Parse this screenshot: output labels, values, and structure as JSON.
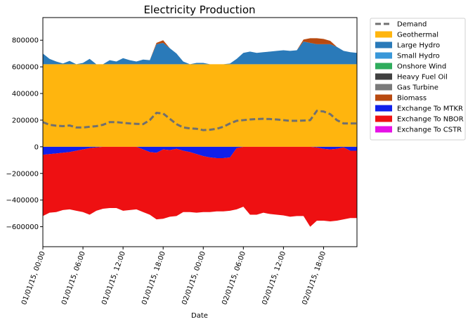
{
  "chart_data": {
    "type": "area",
    "title": "Electricity Production",
    "xlabel": "Date",
    "ylabel": "",
    "ylim": [
      -750000,
      970000
    ],
    "yticks": [
      -600000,
      -400000,
      -200000,
      0,
      200000,
      400000,
      600000,
      800000
    ],
    "ytick_labels": [
      "−600000",
      "−400000",
      "−200000",
      "0",
      "200000",
      "400000",
      "600000",
      "800000"
    ],
    "x_start": "01/01/15, 00:00",
    "x_step_hours": 1,
    "xticks_hours": [
      0,
      6,
      12,
      18,
      24,
      30,
      36,
      42
    ],
    "xtick_labels": [
      "01/01/15, 00:00",
      "01/01/15, 06:00",
      "01/01/15, 12:00",
      "01/01/15, 18:00",
      "02/01/15, 00:00",
      "02/01/15, 06:00",
      "02/01/15, 12:00",
      "02/01/15, 18:00"
    ],
    "xlim_hours": [
      0,
      47
    ],
    "grid": false,
    "legend_position": "outside-right",
    "demand": {
      "name": "Demand",
      "color": "#707070",
      "style": "dashed",
      "values": [
        185000,
        165000,
        158000,
        155000,
        160000,
        145000,
        145000,
        150000,
        155000,
        165000,
        185000,
        185000,
        180000,
        175000,
        172000,
        170000,
        200000,
        255000,
        250000,
        210000,
        170000,
        145000,
        138000,
        135000,
        125000,
        128000,
        135000,
        150000,
        175000,
        195000,
        200000,
        205000,
        208000,
        210000,
        208000,
        205000,
        200000,
        195000,
        195000,
        197000,
        200000,
        270000,
        265000,
        245000,
        200000,
        175000,
        175000,
        175000
      ]
    },
    "positive_series": [
      {
        "name": "Geothermal",
        "color": "#ffb50e",
        "values": [
          620000,
          620000,
          620000,
          620000,
          620000,
          620000,
          620000,
          620000,
          620000,
          620000,
          620000,
          620000,
          620000,
          620000,
          620000,
          620000,
          620000,
          620000,
          620000,
          620000,
          620000,
          620000,
          620000,
          620000,
          620000,
          620000,
          620000,
          620000,
          620000,
          620000,
          620000,
          620000,
          620000,
          620000,
          620000,
          620000,
          620000,
          620000,
          620000,
          620000,
          620000,
          620000,
          620000,
          620000,
          620000,
          620000,
          620000,
          620000
        ]
      },
      {
        "name": "Large Hydro",
        "color": "#2a7ab9",
        "values": [
          80000,
          40000,
          20000,
          5000,
          25000,
          0,
          10000,
          40000,
          0,
          0,
          30000,
          20000,
          45000,
          30000,
          20000,
          35000,
          30000,
          150000,
          160000,
          120000,
          80000,
          20000,
          0,
          10000,
          10000,
          0,
          0,
          0,
          5000,
          40000,
          85000,
          95000,
          85000,
          90000,
          95000,
          100000,
          105000,
          100000,
          105000,
          170000,
          160000,
          150000,
          150000,
          150000,
          130000,
          100000,
          90000,
          85000
        ]
      },
      {
        "name": "Small Hydro",
        "color": "#3a98d9",
        "values": [
          0,
          0,
          0,
          0,
          0,
          0,
          0,
          0,
          0,
          0,
          0,
          0,
          0,
          0,
          0,
          0,
          0,
          0,
          0,
          0,
          0,
          0,
          0,
          0,
          0,
          0,
          0,
          0,
          0,
          0,
          0,
          0,
          0,
          0,
          0,
          0,
          0,
          0,
          0,
          0,
          0,
          0,
          0,
          0,
          0,
          0,
          0,
          0
        ]
      },
      {
        "name": "Onshore Wind",
        "color": "#2fac5c",
        "values": [
          0,
          0,
          0,
          0,
          0,
          0,
          0,
          0,
          0,
          0,
          0,
          0,
          0,
          0,
          0,
          0,
          0,
          0,
          0,
          0,
          0,
          0,
          0,
          0,
          0,
          0,
          0,
          0,
          0,
          0,
          0,
          0,
          0,
          0,
          0,
          0,
          0,
          0,
          0,
          0,
          0,
          0,
          0,
          0,
          0,
          0,
          0,
          0
        ]
      },
      {
        "name": "Heavy Fuel Oil",
        "color": "#404040",
        "values": [
          0,
          0,
          0,
          0,
          0,
          0,
          0,
          0,
          0,
          0,
          0,
          0,
          0,
          0,
          0,
          0,
          0,
          0,
          0,
          0,
          0,
          0,
          0,
          0,
          0,
          0,
          0,
          0,
          0,
          0,
          0,
          0,
          0,
          0,
          0,
          0,
          0,
          0,
          0,
          0,
          0,
          0,
          0,
          0,
          0,
          0,
          0,
          0
        ]
      },
      {
        "name": "Gas Turbine",
        "color": "#7a7a7a",
        "values": [
          0,
          0,
          0,
          0,
          0,
          0,
          0,
          0,
          0,
          0,
          0,
          0,
          0,
          0,
          0,
          0,
          0,
          0,
          0,
          0,
          0,
          0,
          0,
          0,
          0,
          0,
          0,
          0,
          0,
          0,
          0,
          0,
          0,
          0,
          0,
          0,
          0,
          0,
          0,
          0,
          0,
          0,
          0,
          0,
          0,
          0,
          0,
          0
        ]
      },
      {
        "name": "Biomass",
        "color": "#b84a10",
        "values": [
          0,
          0,
          0,
          0,
          0,
          0,
          0,
          0,
          0,
          0,
          0,
          0,
          0,
          0,
          0,
          0,
          0,
          10000,
          20000,
          0,
          0,
          0,
          0,
          0,
          0,
          0,
          0,
          0,
          0,
          0,
          0,
          0,
          0,
          0,
          0,
          0,
          0,
          0,
          0,
          15000,
          35000,
          45000,
          40000,
          25000,
          0,
          0,
          0,
          0
        ]
      }
    ],
    "negative_series": [
      {
        "name": "Exchange To MTKR",
        "color": "#1020ea",
        "values": [
          -60000,
          -55000,
          -50000,
          -45000,
          -40000,
          -30000,
          -20000,
          -10000,
          -5000,
          0,
          0,
          0,
          0,
          0,
          0,
          -20000,
          -40000,
          -45000,
          -20000,
          -25000,
          -15000,
          -30000,
          -40000,
          -55000,
          -70000,
          -80000,
          -85000,
          -85000,
          -80000,
          -10000,
          0,
          0,
          0,
          0,
          0,
          0,
          0,
          0,
          0,
          0,
          0,
          -5000,
          -15000,
          -20000,
          -15000,
          -5000,
          -30000,
          -30000
        ]
      },
      {
        "name": "Exchange To NBOR",
        "color": "#ee1012",
        "values": [
          -460000,
          -440000,
          -440000,
          -430000,
          -430000,
          -450000,
          -470000,
          -500000,
          -475000,
          -465000,
          -460000,
          -460000,
          -480000,
          -475000,
          -470000,
          -470000,
          -470000,
          -500000,
          -520000,
          -500000,
          -505000,
          -460000,
          -450000,
          -440000,
          -420000,
          -410000,
          -400000,
          -400000,
          -400000,
          -460000,
          -450000,
          -510000,
          -510000,
          -495000,
          -505000,
          -510000,
          -515000,
          -525000,
          -520000,
          -520000,
          -600000,
          -550000,
          -540000,
          -540000,
          -540000,
          -540000,
          -505000,
          -505000
        ]
      },
      {
        "name": "Exchange To CSTR",
        "color": "#e610e6",
        "values": [
          0,
          0,
          0,
          0,
          0,
          0,
          0,
          0,
          0,
          0,
          0,
          0,
          0,
          0,
          0,
          0,
          0,
          0,
          0,
          0,
          0,
          0,
          0,
          0,
          0,
          0,
          0,
          0,
          0,
          0,
          0,
          0,
          0,
          0,
          0,
          0,
          0,
          0,
          0,
          0,
          0,
          0,
          0,
          0,
          0,
          0,
          0,
          0
        ]
      }
    ],
    "legend": [
      {
        "label": "Demand",
        "color": "#707070",
        "kind": "dashed-line"
      },
      {
        "label": "Geothermal",
        "color": "#ffb50e",
        "kind": "patch"
      },
      {
        "label": "Large Hydro",
        "color": "#2a7ab9",
        "kind": "patch"
      },
      {
        "label": "Small Hydro",
        "color": "#3a98d9",
        "kind": "patch"
      },
      {
        "label": "Onshore Wind",
        "color": "#2fac5c",
        "kind": "patch"
      },
      {
        "label": "Heavy Fuel Oil",
        "color": "#404040",
        "kind": "patch"
      },
      {
        "label": "Gas Turbine",
        "color": "#7a7a7a",
        "kind": "patch"
      },
      {
        "label": "Biomass",
        "color": "#b84a10",
        "kind": "patch"
      },
      {
        "label": "Exchange To MTKR",
        "color": "#1020ea",
        "kind": "patch"
      },
      {
        "label": "Exchange To NBOR",
        "color": "#ee1012",
        "kind": "patch"
      },
      {
        "label": "Exchange To CSTR",
        "color": "#e610e6",
        "kind": "patch"
      }
    ]
  }
}
